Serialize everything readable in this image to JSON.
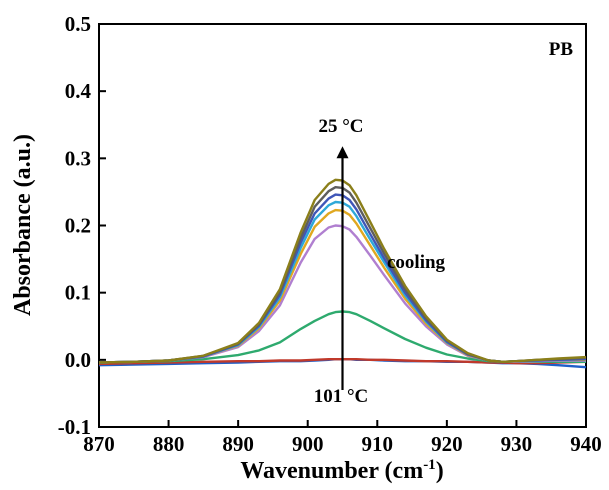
{
  "chart_data": {
    "type": "line",
    "title": "",
    "xlabel": "Wavenumber (cm",
    "xlabel_sup": "-1",
    "xlabel_tail": ")",
    "ylabel": "Absorbance (a.u.)",
    "xlim": [
      870,
      940
    ],
    "ylim": [
      -0.1,
      0.5
    ],
    "x_ticks": [
      870,
      880,
      890,
      900,
      910,
      920,
      930,
      940
    ],
    "x_tick_labels": [
      "870",
      "880",
      "890",
      "900",
      "910",
      "920",
      "930",
      "940"
    ],
    "y_ticks": [
      -0.1,
      0.0,
      0.1,
      0.2,
      0.3,
      0.4,
      0.5
    ],
    "y_tick_labels": [
      "-0.1",
      "0.0",
      "0.1",
      "0.2",
      "0.3",
      "0.4",
      "0.5"
    ],
    "grid": false,
    "legend": "none",
    "x": [
      870,
      875,
      880,
      885,
      890,
      893,
      896,
      899,
      901,
      903,
      904,
      905,
      906,
      907,
      909,
      911,
      914,
      917,
      920,
      923,
      926,
      928,
      930,
      933,
      936,
      940
    ],
    "series": [
      {
        "color": "#8B7F1A",
        "values": [
          -0.004,
          -0.003,
          -0.001,
          0.006,
          0.025,
          0.055,
          0.105,
          0.19,
          0.238,
          0.262,
          0.268,
          0.267,
          0.26,
          0.245,
          0.205,
          0.165,
          0.11,
          0.065,
          0.03,
          0.01,
          -0.001,
          -0.003,
          -0.002,
          0.0,
          0.002,
          0.004
        ]
      },
      {
        "color": "#5E5E5E",
        "values": [
          -0.004,
          -0.003,
          -0.001,
          0.006,
          0.024,
          0.053,
          0.101,
          0.182,
          0.228,
          0.251,
          0.257,
          0.256,
          0.249,
          0.234,
          0.196,
          0.158,
          0.105,
          0.062,
          0.029,
          0.009,
          -0.001,
          -0.003,
          -0.002,
          0.0,
          0.001,
          0.003
        ]
      },
      {
        "color": "#3F56B8",
        "values": [
          -0.004,
          -0.003,
          -0.001,
          0.005,
          0.023,
          0.051,
          0.097,
          0.175,
          0.218,
          0.24,
          0.246,
          0.245,
          0.238,
          0.224,
          0.187,
          0.151,
          0.1,
          0.059,
          0.027,
          0.008,
          -0.001,
          -0.003,
          -0.002,
          -0.001,
          0.0,
          0.001
        ]
      },
      {
        "color": "#2EA8D8",
        "values": [
          -0.004,
          -0.003,
          -0.001,
          0.005,
          0.022,
          0.049,
          0.093,
          0.167,
          0.209,
          0.23,
          0.235,
          0.234,
          0.228,
          0.214,
          0.179,
          0.145,
          0.096,
          0.057,
          0.026,
          0.008,
          -0.001,
          -0.003,
          -0.002,
          -0.001,
          0.0,
          0.001
        ]
      },
      {
        "color": "#E0A820",
        "values": [
          -0.004,
          -0.003,
          -0.001,
          0.005,
          0.021,
          0.047,
          0.088,
          0.158,
          0.198,
          0.218,
          0.223,
          0.222,
          0.216,
          0.203,
          0.17,
          0.137,
          0.091,
          0.054,
          0.025,
          0.007,
          -0.001,
          -0.003,
          -0.002,
          -0.001,
          0.0,
          0.0
        ]
      },
      {
        "color": "#B07FD0",
        "values": [
          -0.004,
          -0.003,
          -0.001,
          0.004,
          0.019,
          0.043,
          0.081,
          0.145,
          0.18,
          0.197,
          0.2,
          0.199,
          0.194,
          0.183,
          0.155,
          0.126,
          0.084,
          0.05,
          0.023,
          0.006,
          -0.001,
          -0.003,
          -0.003,
          -0.002,
          -0.001,
          -0.001
        ]
      },
      {
        "color": "#2EAA6E",
        "values": [
          -0.004,
          -0.003,
          -0.002,
          0.001,
          0.007,
          0.014,
          0.026,
          0.046,
          0.058,
          0.068,
          0.071,
          0.072,
          0.071,
          0.068,
          0.058,
          0.047,
          0.031,
          0.018,
          0.008,
          0.002,
          -0.002,
          -0.003,
          -0.003,
          -0.003,
          -0.003,
          -0.003
        ]
      },
      {
        "color": "#C0392B",
        "values": [
          -0.006,
          -0.005,
          -0.004,
          -0.003,
          -0.002,
          -0.002,
          -0.001,
          -0.001,
          0.0,
          0.001,
          0.001,
          0.001,
          0.001,
          0.001,
          0.0,
          0.0,
          -0.001,
          -0.002,
          -0.002,
          -0.003,
          -0.004,
          -0.004,
          -0.005,
          -0.005,
          -0.004,
          -0.003
        ]
      },
      {
        "color": "#1F5FC8",
        "values": [
          -0.008,
          -0.007,
          -0.006,
          -0.005,
          -0.004,
          -0.003,
          -0.002,
          -0.002,
          -0.001,
          0.0,
          0.001,
          0.001,
          0.001,
          0.0,
          0.0,
          -0.001,
          -0.002,
          -0.002,
          -0.003,
          -0.003,
          -0.004,
          -0.005,
          -0.005,
          -0.006,
          -0.008,
          -0.011
        ]
      }
    ],
    "annotations": {
      "sample_label": "PB",
      "top_temp": "25 °C",
      "bottom_temp": "101 °C",
      "process": "cooling",
      "arrow_x": 905,
      "arrow_from_y": -0.045,
      "arrow_to_y": 0.318
    }
  }
}
